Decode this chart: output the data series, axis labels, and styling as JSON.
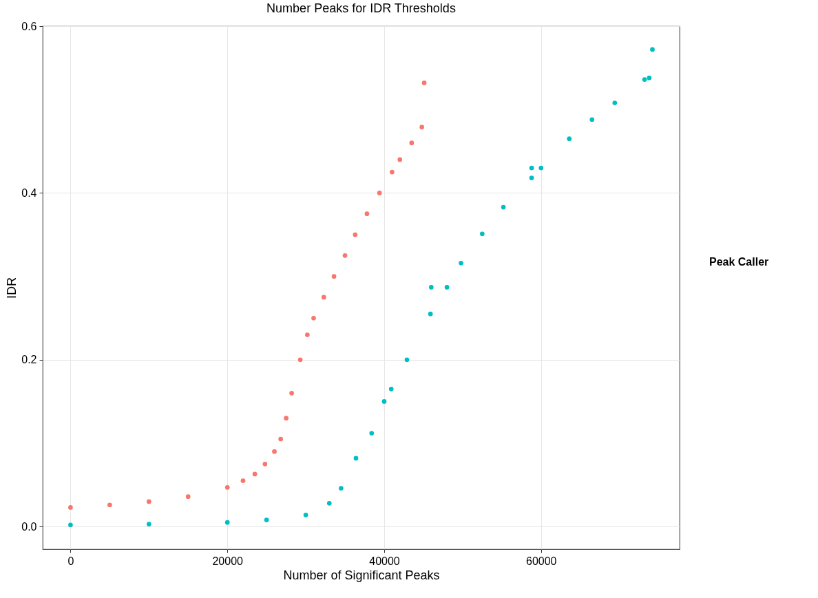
{
  "chart_data": {
    "type": "scatter",
    "title": "Number Peaks for IDR Thresholds",
    "xlabel": "Number of Significant Peaks",
    "ylabel": "IDR",
    "legend_title": "Peak Caller",
    "grid": true,
    "marker": "circle",
    "xlim": [
      -3550,
      77670
    ],
    "ylim": [
      -0.027,
      0.6
    ],
    "xticks": [
      0,
      20000,
      40000,
      60000
    ],
    "yticks": [
      {
        "value": 0,
        "label": "0.0"
      },
      0.2,
      0.4,
      0.6
    ],
    "series": [
      {
        "color": "#f8766d",
        "x": [
          0,
          5000,
          10000,
          15000,
          20000,
          22000,
          23500,
          24800,
          26000,
          26800,
          27500,
          28200,
          29300,
          30200,
          31000,
          32300,
          33600,
          35000,
          36300,
          37800,
          39400,
          41000,
          42000,
          43500,
          44800,
          45100
        ],
        "values": [
          0.023,
          0.026,
          0.03,
          0.036,
          0.047,
          0.055,
          0.063,
          0.075,
          0.09,
          0.105,
          0.13,
          0.16,
          0.2,
          0.23,
          0.25,
          0.275,
          0.3,
          0.325,
          0.35,
          0.375,
          0.4,
          0.425,
          0.44,
          0.46,
          0.479,
          0.532
        ]
      },
      {
        "color": "#00bfc4",
        "x": [
          0,
          10000,
          20000,
          25000,
          30000,
          33000,
          34500,
          36400,
          38400,
          40000,
          40900,
          42900,
          45900,
          46000,
          48000,
          49800,
          52500,
          55200,
          58800,
          58800,
          60000,
          63600,
          66500,
          69400,
          73200,
          73800,
          74200
        ],
        "values": [
          0.002,
          0.003,
          0.005,
          0.008,
          0.014,
          0.028,
          0.046,
          0.082,
          0.112,
          0.15,
          0.165,
          0.2,
          0.255,
          0.287,
          0.287,
          0.316,
          0.351,
          0.383,
          0.418,
          0.43,
          0.43,
          0.465,
          0.488,
          0.508,
          0.536,
          0.538,
          0.572
        ]
      }
    ]
  }
}
